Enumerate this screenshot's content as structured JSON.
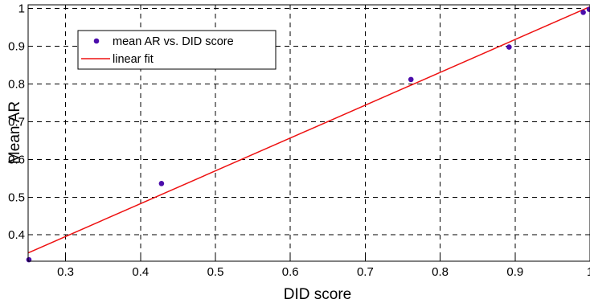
{
  "chart_data": {
    "type": "scatter",
    "xlabel": "DID score",
    "ylabel": "Mean AR",
    "xlim": [
      0.25,
      1.0
    ],
    "ylim": [
      0.33,
      1.01
    ],
    "x_ticks": [
      0.3,
      0.4,
      0.5,
      0.6,
      0.7,
      0.8,
      0.9,
      1.0
    ],
    "x_tick_labels": [
      "0.3",
      "0.4",
      "0.5",
      "0.6",
      "0.7",
      "0.8",
      "0.9",
      "1"
    ],
    "y_ticks": [
      0.4,
      0.5,
      0.6,
      0.7,
      0.8,
      0.9,
      1.0
    ],
    "y_tick_labels": [
      "0.4",
      "0.5",
      "0.6",
      "0.7",
      "0.8",
      "0.9",
      "1"
    ],
    "grid": true,
    "legend_position": "top-left",
    "series": [
      {
        "name": "mean AR vs. DID score",
        "kind": "scatter",
        "color": "#4b0dab",
        "points": [
          {
            "x": 0.251,
            "y": 0.334
          },
          {
            "x": 0.428,
            "y": 0.536
          },
          {
            "x": 0.761,
            "y": 0.812
          },
          {
            "x": 0.892,
            "y": 0.898
          },
          {
            "x": 0.991,
            "y": 0.99
          },
          {
            "x": 0.999,
            "y": 0.998
          }
        ]
      },
      {
        "name": "linear fit",
        "kind": "line",
        "color": "#ee1111",
        "points": [
          {
            "x": 0.25,
            "y": 0.352
          },
          {
            "x": 1.0,
            "y": 1.005
          }
        ]
      }
    ]
  }
}
